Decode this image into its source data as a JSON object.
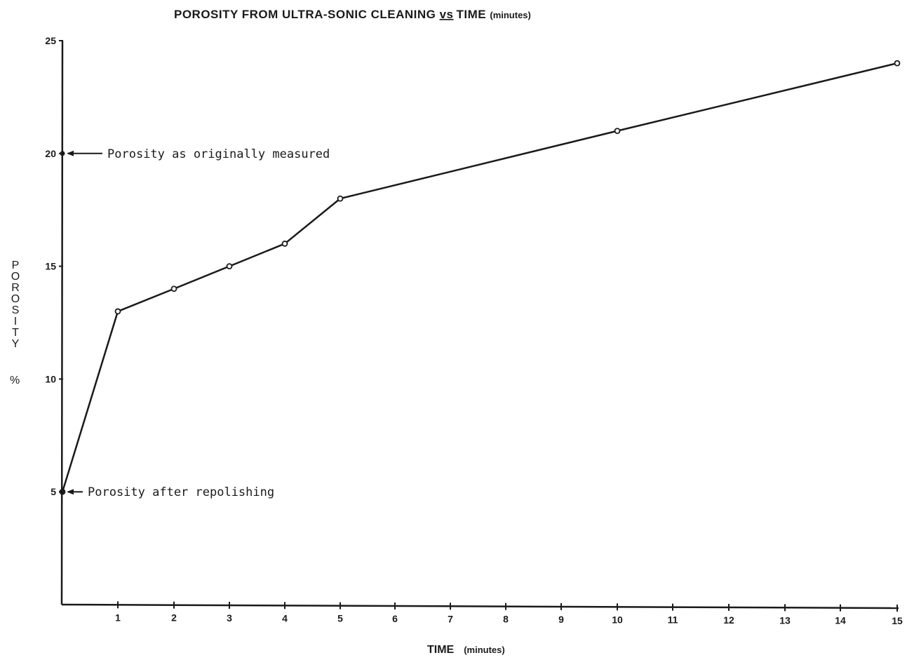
{
  "chart_data": {
    "type": "line",
    "title": {
      "prefix": "POROSITY FROM ULTRA-SONIC CLEANING ",
      "vs": "vs",
      "mid": " TIME ",
      "units": "(minutes)"
    },
    "xlabel": {
      "main": "TIME",
      "units": "(minutes)"
    },
    "ylabel": [
      "P",
      "O",
      "R",
      "O",
      "S",
      "I",
      "T",
      "Y"
    ],
    "ylabel_unit": "%",
    "x_ticks": [
      1,
      2,
      3,
      4,
      5,
      6,
      7,
      8,
      9,
      10,
      11,
      12,
      13,
      14,
      15
    ],
    "y_ticks": [
      5,
      10,
      15,
      20,
      25
    ],
    "xlim": [
      0,
      15
    ],
    "ylim": [
      0,
      25
    ],
    "x_axis_note": "axis is linear 0–5 then compressed: ticks 5..10 span 5 units",
    "series": [
      {
        "x": [
          0,
          1,
          2,
          3,
          4,
          5,
          10,
          15
        ],
        "values": [
          5,
          13,
          14,
          15,
          16,
          18,
          21,
          24
        ]
      }
    ],
    "annotations": [
      {
        "text": "Porosity as originally measured",
        "x": 0,
        "y": 20
      },
      {
        "text": "Porosity after repolishing",
        "x": 0,
        "y": 5
      }
    ],
    "grid": false,
    "line_color": "#1a1a1a"
  }
}
